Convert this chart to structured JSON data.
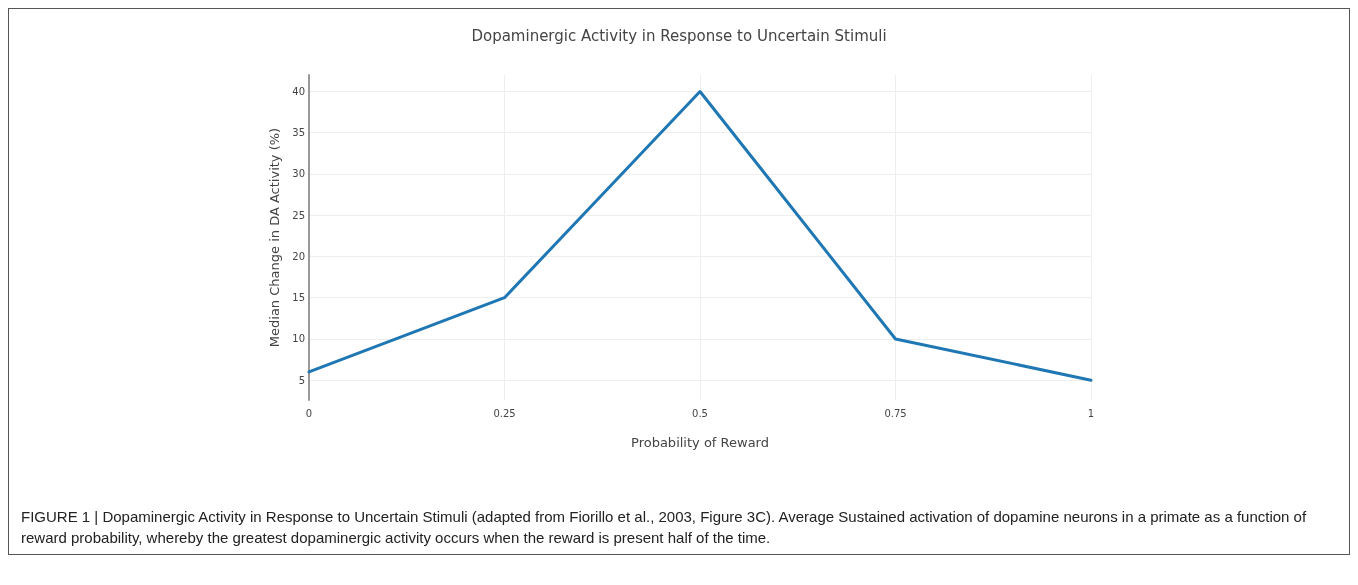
{
  "chart_data": {
    "type": "line",
    "title": "Dopaminergic Activity in Response to Uncertain Stimuli",
    "xlabel": "Probability of Reward",
    "ylabel": "Median Change in DA Activity (%)",
    "x": [
      0,
      0.25,
      0.5,
      0.75,
      1
    ],
    "series": [
      {
        "color": "#1f77b4",
        "values": [
          6,
          15,
          40,
          10,
          5
        ]
      }
    ],
    "xlim": [
      0,
      1
    ],
    "xticks": [
      0,
      0.25,
      0.5,
      0.75,
      1
    ],
    "ylim": [
      2.6,
      42
    ],
    "yticks": [
      5,
      10,
      15,
      20,
      25,
      30,
      35,
      40
    ],
    "grid": true,
    "marker": "none",
    "line_style": "solid",
    "annotations": [
      "FIGURE 1 | Dopaminergic Activity in Response to Uncertain Stimuli (adapted from Fiorillo et al., 2003, Figure 3C). Average Sustained activation of dopamine neurons in a primate as a function of reward probability, whereby the greatest dopaminergic activity occurs when the reward is present half of the time."
    ]
  }
}
